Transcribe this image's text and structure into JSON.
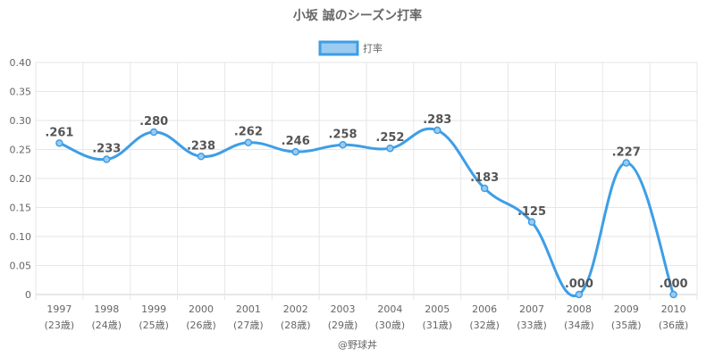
{
  "chart_data": {
    "type": "line",
    "title": "小坂 誠のシーズン打率",
    "categories": [
      "1997",
      "1998",
      "1999",
      "2000",
      "2001",
      "2002",
      "2003",
      "2004",
      "2005",
      "2006",
      "2007",
      "2008",
      "2009",
      "2010"
    ],
    "category_sublabels": [
      "(23歳)",
      "(24歳)",
      "(25歳)",
      "(26歳)",
      "(27歳)",
      "(28歳)",
      "(29歳)",
      "(30歳)",
      "(31歳)",
      "(32歳)",
      "(33歳)",
      "(34歳)",
      "(35歳)",
      "(36歳)"
    ],
    "series": [
      {
        "name": "打率",
        "values": [
          0.261,
          0.233,
          0.28,
          0.238,
          0.262,
          0.246,
          0.258,
          0.252,
          0.283,
          0.183,
          0.125,
          0.0,
          0.227,
          0.0
        ],
        "labels": [
          ".261",
          ".233",
          ".280",
          ".238",
          ".262",
          ".246",
          ".258",
          ".252",
          ".283",
          ".183",
          ".125",
          ".000",
          ".227",
          ".000"
        ],
        "color": "#3d9ee6",
        "fill": "#9ccbf0"
      }
    ],
    "ylim": [
      0,
      0.4
    ],
    "yticks": [
      0,
      0.05,
      0.1,
      0.15,
      0.2,
      0.25,
      0.3,
      0.35,
      0.4
    ],
    "ytick_labels": [
      "0",
      "0.05",
      "0.10",
      "0.15",
      "0.20",
      "0.25",
      "0.30",
      "0.35",
      "0.40"
    ],
    "grid": true,
    "legend": "top-center",
    "credit": "@野球丼"
  }
}
